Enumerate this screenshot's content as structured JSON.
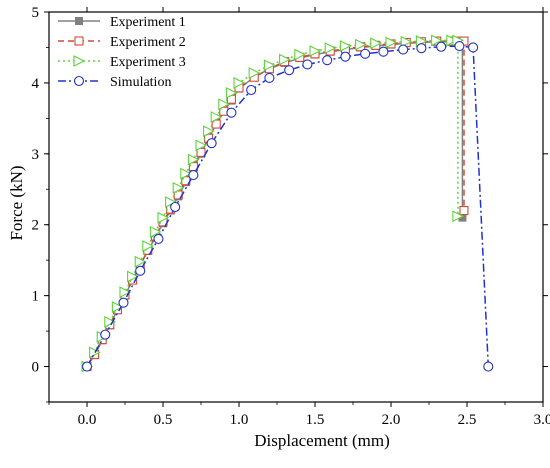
{
  "chart_data": {
    "type": "line",
    "title": "",
    "xlabel": "Displacement (mm)",
    "ylabel": "Force (kN)",
    "xlim": [
      -0.25,
      3.0
    ],
    "ylim": [
      -0.5,
      5.0
    ],
    "xticks": [
      0.0,
      0.5,
      1.0,
      1.5,
      2.0,
      2.5,
      3.0
    ],
    "xtick_labels": [
      "0.0",
      "0.5",
      "1.0",
      "1.5",
      "2.0",
      "2.5",
      "3.0"
    ],
    "yticks": [
      0,
      1,
      2,
      3,
      4,
      5
    ],
    "ytick_labels": [
      "0",
      "1",
      "2",
      "3",
      "4",
      "5"
    ],
    "grid": false,
    "legend_position": "top-left",
    "series": [
      {
        "name": "Experiment 1",
        "color": "#808080",
        "line_style": "solid",
        "marker": "filled-square",
        "x": [
          0.0,
          0.05,
          0.1,
          0.15,
          0.2,
          0.25,
          0.3,
          0.35,
          0.4,
          0.45,
          0.5,
          0.55,
          0.6,
          0.65,
          0.7,
          0.75,
          0.8,
          0.85,
          0.9,
          0.95,
          1.0,
          1.1,
          1.2,
          1.3,
          1.4,
          1.5,
          1.6,
          1.7,
          1.8,
          1.9,
          2.0,
          2.1,
          2.2,
          2.3,
          2.4,
          2.45,
          2.47,
          2.47
        ],
        "y": [
          0.0,
          0.16,
          0.37,
          0.58,
          0.8,
          1.0,
          1.22,
          1.43,
          1.63,
          1.82,
          2.02,
          2.2,
          2.4,
          2.6,
          2.8,
          3.0,
          3.22,
          3.42,
          3.6,
          3.75,
          3.92,
          4.08,
          4.2,
          4.28,
          4.35,
          4.4,
          4.44,
          4.47,
          4.5,
          4.52,
          4.54,
          4.56,
          4.57,
          4.58,
          4.58,
          4.59,
          4.59,
          2.1
        ]
      },
      {
        "name": "Experiment 2",
        "color": "#d04a3a",
        "line_style": "dashed",
        "marker": "open-square",
        "x": [
          0.0,
          0.05,
          0.1,
          0.15,
          0.2,
          0.25,
          0.3,
          0.35,
          0.4,
          0.45,
          0.5,
          0.55,
          0.6,
          0.65,
          0.7,
          0.75,
          0.8,
          0.85,
          0.9,
          0.95,
          1.0,
          1.1,
          1.2,
          1.3,
          1.4,
          1.5,
          1.6,
          1.7,
          1.8,
          1.9,
          2.0,
          2.1,
          2.2,
          2.3,
          2.4,
          2.45,
          2.48,
          2.48
        ],
        "y": [
          0.0,
          0.17,
          0.38,
          0.59,
          0.8,
          1.01,
          1.22,
          1.43,
          1.64,
          1.84,
          2.04,
          2.22,
          2.42,
          2.62,
          2.82,
          3.02,
          3.22,
          3.42,
          3.6,
          3.77,
          3.93,
          4.08,
          4.2,
          4.3,
          4.36,
          4.41,
          4.45,
          4.48,
          4.51,
          4.53,
          4.55,
          4.57,
          4.58,
          4.59,
          4.59,
          4.59,
          4.59,
          2.2
        ]
      },
      {
        "name": "Experiment 3",
        "color": "#5fd33b",
        "line_style": "dotted",
        "marker": "open-triangle-right",
        "x": [
          0.0,
          0.05,
          0.1,
          0.15,
          0.2,
          0.25,
          0.3,
          0.35,
          0.4,
          0.45,
          0.5,
          0.55,
          0.6,
          0.65,
          0.7,
          0.75,
          0.8,
          0.85,
          0.9,
          0.95,
          1.0,
          1.1,
          1.2,
          1.3,
          1.4,
          1.5,
          1.6,
          1.7,
          1.8,
          1.9,
          2.0,
          2.1,
          2.2,
          2.3,
          2.4,
          2.44,
          2.44
        ],
        "y": [
          0.0,
          0.2,
          0.42,
          0.63,
          0.84,
          1.05,
          1.27,
          1.48,
          1.7,
          1.9,
          2.1,
          2.32,
          2.52,
          2.72,
          2.92,
          3.12,
          3.32,
          3.52,
          3.7,
          3.86,
          4.0,
          4.14,
          4.25,
          4.33,
          4.4,
          4.45,
          4.49,
          4.52,
          4.54,
          4.56,
          4.57,
          4.58,
          4.59,
          4.6,
          4.6,
          4.6,
          2.12
        ]
      },
      {
        "name": "Simulation",
        "color": "#2233cc",
        "line_style": "dash-dot",
        "marker": "open-circle",
        "x": [
          0.0,
          0.12,
          0.24,
          0.35,
          0.47,
          0.58,
          0.7,
          0.82,
          0.95,
          1.08,
          1.2,
          1.33,
          1.45,
          1.58,
          1.7,
          1.83,
          1.95,
          2.08,
          2.2,
          2.33,
          2.45,
          2.54,
          2.64
        ],
        "y": [
          0.0,
          0.45,
          0.9,
          1.35,
          1.8,
          2.25,
          2.7,
          3.15,
          3.58,
          3.9,
          4.07,
          4.18,
          4.26,
          4.32,
          4.37,
          4.41,
          4.44,
          4.47,
          4.49,
          4.51,
          4.52,
          4.5,
          0.0
        ]
      }
    ]
  }
}
